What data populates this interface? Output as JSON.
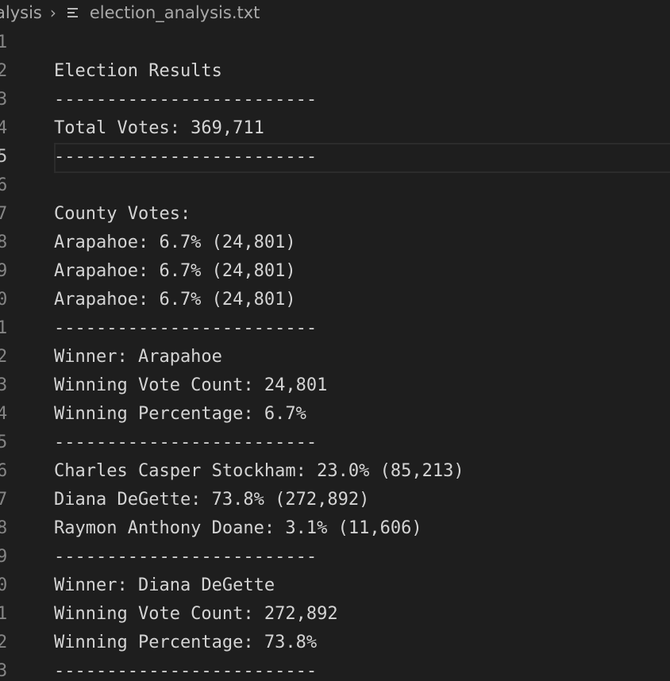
{
  "breadcrumb": {
    "folder": "alysis",
    "separator_icon": "chevron-right-icon",
    "file_icon": "text-file-icon",
    "filename": "election_analysis.txt"
  },
  "editor": {
    "current_line_number": "5",
    "lines": [
      {
        "n": "1",
        "text": ""
      },
      {
        "n": "2",
        "text": "Election Results"
      },
      {
        "n": "3",
        "text": "-------------------------"
      },
      {
        "n": "4",
        "text": "Total Votes: 369,711"
      },
      {
        "n": "5",
        "text": "-------------------------"
      },
      {
        "n": "6",
        "text": ""
      },
      {
        "n": "7",
        "text": "County Votes:"
      },
      {
        "n": "8",
        "text": "Arapahoe: 6.7% (24,801)"
      },
      {
        "n": "9",
        "text": "Arapahoe: 6.7% (24,801)"
      },
      {
        "n": "0",
        "text": "Arapahoe: 6.7% (24,801)"
      },
      {
        "n": "1",
        "text": "-------------------------"
      },
      {
        "n": "2",
        "text": "Winner: Arapahoe"
      },
      {
        "n": "3",
        "text": "Winning Vote Count: 24,801"
      },
      {
        "n": "4",
        "text": "Winning Percentage: 6.7%"
      },
      {
        "n": "5",
        "text": "-------------------------"
      },
      {
        "n": "6",
        "text": "Charles Casper Stockham: 23.0% (85,213)"
      },
      {
        "n": "7",
        "text": "Diana DeGette: 73.8% (272,892)"
      },
      {
        "n": "8",
        "text": "Raymon Anthony Doane: 3.1% (11,606)"
      },
      {
        "n": "9",
        "text": "-------------------------"
      },
      {
        "n": "0",
        "text": "Winner: Diana DeGette"
      },
      {
        "n": "1",
        "text": "Winning Vote Count: 272,892"
      },
      {
        "n": "2",
        "text": "Winning Percentage: 73.8%"
      },
      {
        "n": "3",
        "text": "-------------------------"
      }
    ]
  },
  "colors": {
    "background": "#1e1e1e",
    "text": "#d4d4d4",
    "line_number": "#858585",
    "breadcrumb": "#a9a9a9"
  }
}
